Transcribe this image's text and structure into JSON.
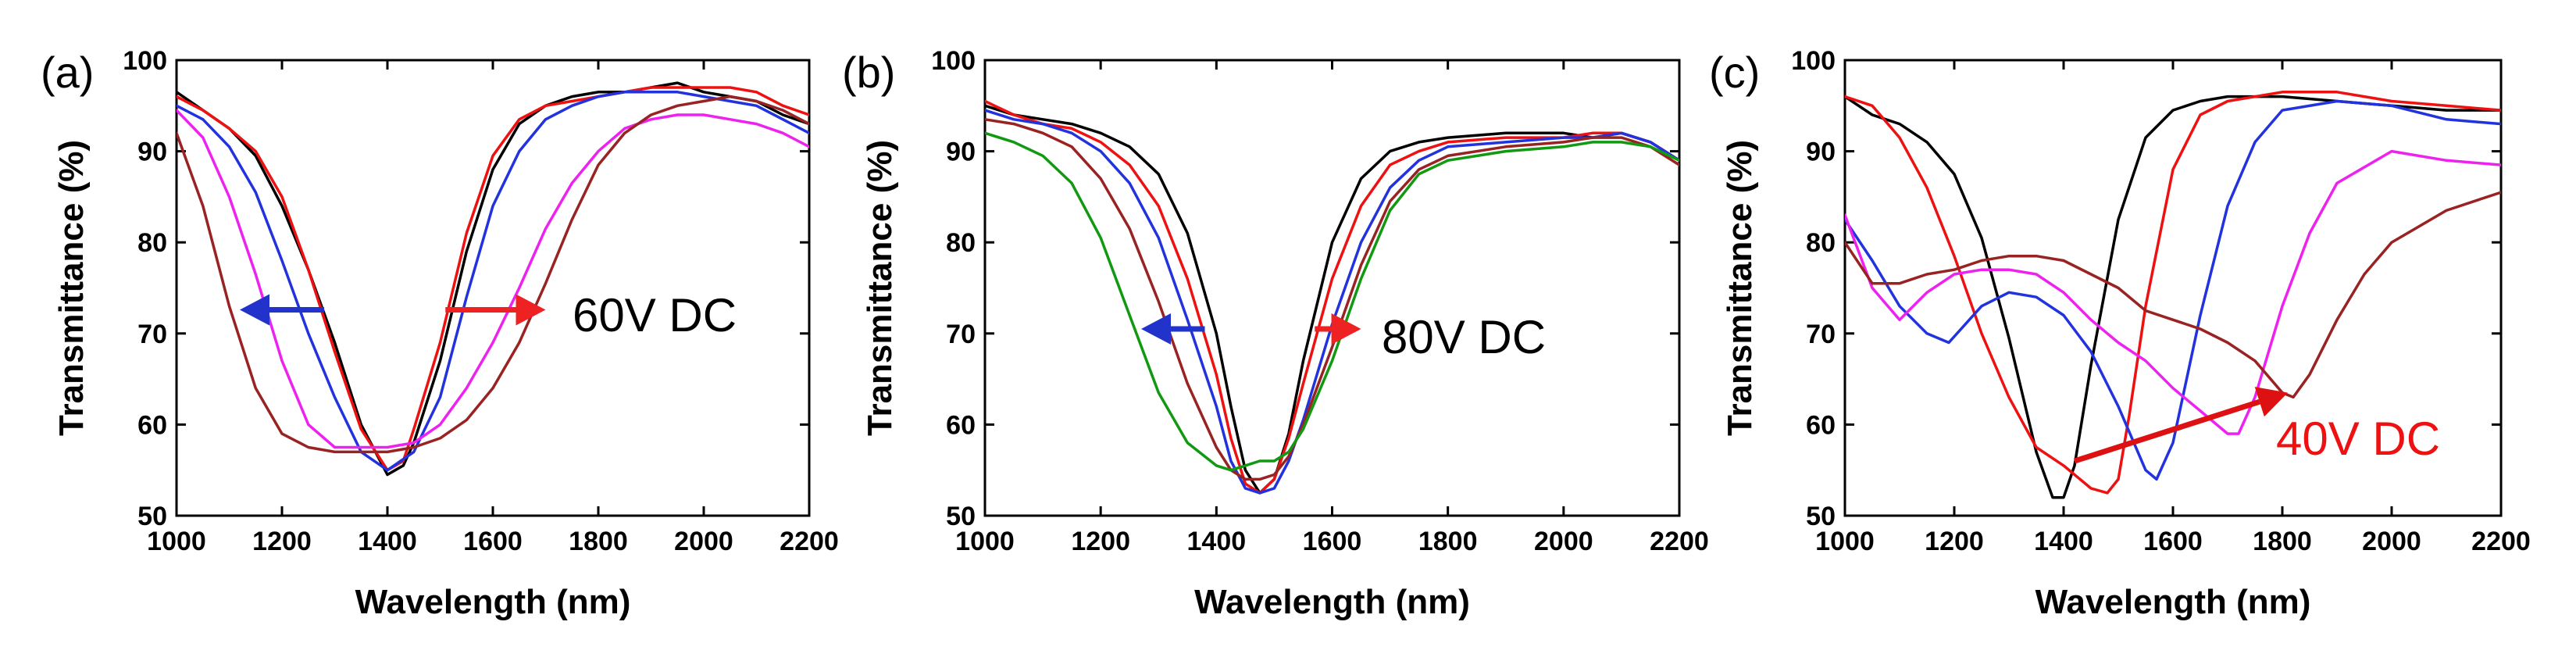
{
  "chart_data": [
    {
      "panel_label": "(a)",
      "type": "line",
      "xlabel": "Wavelength (nm)",
      "ylabel": "Transmittance (%)",
      "xlim": [
        1000,
        2200
      ],
      "ylim": [
        50,
        100
      ],
      "xticks": [
        1000,
        1200,
        1400,
        1600,
        1800,
        2000,
        2200
      ],
      "yticks": [
        50,
        60,
        70,
        80,
        90,
        100
      ],
      "annotation": "60V DC",
      "annotation_color": "#000000",
      "arrows": [
        {
          "from": [
            1280,
            72.6
          ],
          "to": [
            1120,
            72.6
          ],
          "color": "#2233cc"
        },
        {
          "from": [
            1510,
            72.6
          ],
          "to": [
            1700,
            72.6
          ],
          "color": "#ee2222"
        }
      ],
      "series": [
        {
          "name": "black",
          "color": "#000000",
          "x": [
            1000,
            1050,
            1100,
            1150,
            1200,
            1250,
            1300,
            1350,
            1400,
            1430,
            1450,
            1500,
            1550,
            1600,
            1650,
            1700,
            1750,
            1800,
            1850,
            1900,
            1950,
            2000,
            2050,
            2100,
            2150,
            2200
          ],
          "y": [
            96.5,
            94.5,
            92.5,
            89.5,
            84,
            77,
            69,
            60,
            54.5,
            55.5,
            58,
            67,
            79,
            88,
            93,
            95,
            96,
            96.5,
            96.5,
            97,
            97.5,
            96.5,
            96,
            95.5,
            94,
            93
          ]
        },
        {
          "name": "red",
          "color": "#ee1111",
          "x": [
            1000,
            1050,
            1100,
            1150,
            1200,
            1250,
            1300,
            1350,
            1400,
            1430,
            1450,
            1500,
            1550,
            1600,
            1650,
            1700,
            1750,
            1800,
            1850,
            1900,
            1950,
            2000,
            2050,
            2100,
            2150,
            2200
          ],
          "y": [
            96,
            94.5,
            92.5,
            90,
            85,
            77,
            68,
            59.5,
            55,
            56,
            59.5,
            69,
            81,
            89.5,
            93.5,
            95,
            95.5,
            96,
            96.5,
            97,
            97,
            97,
            97,
            96.5,
            95,
            94
          ]
        },
        {
          "name": "blue",
          "color": "#2233dd",
          "x": [
            1000,
            1050,
            1100,
            1150,
            1200,
            1250,
            1300,
            1350,
            1400,
            1450,
            1500,
            1550,
            1600,
            1650,
            1700,
            1750,
            1800,
            1850,
            1900,
            1950,
            2000,
            2050,
            2100,
            2150,
            2200
          ],
          "y": [
            95,
            93.5,
            90.5,
            85.5,
            78,
            70,
            63,
            57,
            55,
            57,
            63,
            74,
            84,
            90,
            93.5,
            95,
            96,
            96.5,
            96.5,
            96.5,
            96,
            95.5,
            95,
            93.5,
            92
          ]
        },
        {
          "name": "magenta",
          "color": "#ee22ee",
          "x": [
            1000,
            1050,
            1100,
            1150,
            1200,
            1250,
            1300,
            1350,
            1400,
            1450,
            1500,
            1550,
            1600,
            1650,
            1700,
            1750,
            1800,
            1850,
            1900,
            1950,
            2000,
            2050,
            2100,
            2150,
            2200
          ],
          "y": [
            94.5,
            91.5,
            85,
            76.5,
            67,
            60,
            57.5,
            57.5,
            57.5,
            58,
            60,
            64,
            69,
            75,
            81.5,
            86.5,
            90,
            92.5,
            93.5,
            94,
            94,
            93.5,
            93,
            92,
            90.5
          ]
        },
        {
          "name": "darkred",
          "color": "#992222",
          "x": [
            1000,
            1050,
            1100,
            1150,
            1200,
            1250,
            1300,
            1350,
            1400,
            1450,
            1500,
            1550,
            1600,
            1650,
            1700,
            1750,
            1800,
            1850,
            1900,
            1950,
            2000,
            2050,
            2100,
            2150,
            2200
          ],
          "y": [
            92,
            84,
            73,
            64,
            59,
            57.5,
            57,
            57,
            57,
            57.5,
            58.5,
            60.5,
            64,
            69,
            75.5,
            82.5,
            88.5,
            92,
            94,
            95,
            95.5,
            96,
            95.5,
            94.5,
            93
          ]
        }
      ]
    },
    {
      "panel_label": "(b)",
      "type": "line",
      "xlabel": "Wavelength (nm)",
      "ylabel": "Transmittance (%)",
      "xlim": [
        1000,
        2200
      ],
      "ylim": [
        50,
        100
      ],
      "xticks": [
        1000,
        1200,
        1400,
        1600,
        1800,
        2000,
        2200
      ],
      "yticks": [
        50,
        60,
        70,
        80,
        90,
        100
      ],
      "annotation": "80V DC",
      "annotation_color": "#000000",
      "arrows": [
        {
          "from": [
            1380,
            70.5
          ],
          "to": [
            1270,
            70.5
          ],
          "color": "#2233cc"
        },
        {
          "from": [
            1570,
            70.5
          ],
          "to": [
            1650,
            70.5
          ],
          "color": "#ee2222"
        }
      ],
      "series": [
        {
          "name": "black",
          "color": "#000000",
          "x": [
            1000,
            1050,
            1100,
            1150,
            1200,
            1250,
            1300,
            1350,
            1400,
            1425,
            1450,
            1475,
            1500,
            1525,
            1550,
            1600,
            1650,
            1700,
            1750,
            1800,
            1900,
            2000,
            2050,
            2100,
            2150,
            2200
          ],
          "y": [
            95,
            94,
            93.5,
            93,
            92,
            90.5,
            87.5,
            81,
            70,
            62,
            55,
            52.5,
            54,
            59,
            67,
            80,
            87,
            90,
            91,
            91.5,
            92,
            92,
            91.5,
            92,
            91,
            89
          ]
        },
        {
          "name": "red",
          "color": "#ee1111",
          "x": [
            1000,
            1050,
            1100,
            1150,
            1200,
            1250,
            1300,
            1350,
            1400,
            1425,
            1450,
            1475,
            1500,
            1525,
            1550,
            1600,
            1650,
            1700,
            1750,
            1800,
            1900,
            2000,
            2050,
            2100,
            2150,
            2200
          ],
          "y": [
            95.5,
            94,
            93,
            92.5,
            91,
            88.5,
            84,
            76,
            65.5,
            58.5,
            53.5,
            52.5,
            54,
            58.5,
            64.5,
            76,
            84,
            88.5,
            90,
            91,
            91.5,
            91.5,
            92,
            92,
            91,
            89
          ]
        },
        {
          "name": "blue",
          "color": "#2233dd",
          "x": [
            1000,
            1050,
            1100,
            1150,
            1200,
            1250,
            1300,
            1350,
            1400,
            1425,
            1450,
            1475,
            1500,
            1525,
            1550,
            1600,
            1650,
            1700,
            1750,
            1800,
            1900,
            2000,
            2050,
            2100,
            2150,
            2200
          ],
          "y": [
            94.5,
            93.5,
            93,
            92,
            90,
            86.5,
            80.5,
            71.5,
            62,
            56,
            53,
            52.5,
            53,
            56,
            60.5,
            71,
            80,
            86,
            89,
            90.5,
            91,
            91.5,
            91.5,
            92,
            91,
            89
          ]
        },
        {
          "name": "darkred",
          "color": "#992222",
          "x": [
            1000,
            1050,
            1100,
            1150,
            1200,
            1250,
            1300,
            1350,
            1400,
            1425,
            1450,
            1475,
            1500,
            1525,
            1550,
            1600,
            1650,
            1700,
            1750,
            1800,
            1900,
            2000,
            2050,
            2100,
            2150,
            2200
          ],
          "y": [
            93.5,
            93,
            92,
            90.5,
            87,
            81.5,
            73.5,
            64.5,
            57.5,
            55,
            54,
            54,
            54.5,
            56.5,
            60,
            68.5,
            77.5,
            84.5,
            88,
            89.5,
            90.5,
            91,
            91.5,
            91.5,
            90.5,
            88.5
          ]
        },
        {
          "name": "green",
          "color": "#119911",
          "x": [
            1000,
            1050,
            1100,
            1150,
            1200,
            1250,
            1300,
            1350,
            1400,
            1425,
            1450,
            1475,
            1500,
            1525,
            1550,
            1600,
            1650,
            1700,
            1750,
            1800,
            1900,
            2000,
            2050,
            2100,
            2150,
            2200
          ],
          "y": [
            92,
            91,
            89.5,
            86.5,
            80.5,
            72,
            63.5,
            58,
            55.5,
            55,
            55.5,
            56,
            56,
            57,
            59.5,
            67,
            76,
            83.5,
            87.5,
            89,
            90,
            90.5,
            91,
            91,
            90.5,
            89
          ]
        }
      ]
    },
    {
      "panel_label": "(c)",
      "type": "line",
      "xlabel": "Wavelength (nm)",
      "ylabel": "Transmittance (%)",
      "xlim": [
        1000,
        2200
      ],
      "ylim": [
        50,
        100
      ],
      "xticks": [
        1000,
        1200,
        1400,
        1600,
        1800,
        2000,
        2200
      ],
      "yticks": [
        50,
        60,
        70,
        80,
        90,
        100
      ],
      "annotation": "40V DC",
      "annotation_color": "#ee1111",
      "arrows": [
        {
          "from": [
            1420,
            56
          ],
          "to": [
            1810,
            63.5
          ],
          "color": "#dd1111"
        }
      ],
      "series": [
        {
          "name": "black",
          "color": "#000000",
          "x": [
            1000,
            1050,
            1100,
            1150,
            1200,
            1250,
            1300,
            1350,
            1380,
            1400,
            1420,
            1450,
            1500,
            1550,
            1600,
            1650,
            1700,
            1800,
            1900,
            2000,
            2100,
            2200
          ],
          "y": [
            96,
            94,
            93,
            91,
            87.5,
            80.5,
            69.5,
            57,
            52,
            52,
            55.5,
            66.5,
            82.5,
            91.5,
            94.5,
            95.5,
            96,
            96,
            95.5,
            95,
            94.5,
            94.5
          ]
        },
        {
          "name": "red",
          "color": "#ee1111",
          "x": [
            1000,
            1050,
            1100,
            1150,
            1200,
            1250,
            1300,
            1350,
            1400,
            1450,
            1480,
            1500,
            1520,
            1550,
            1600,
            1650,
            1700,
            1800,
            1900,
            2000,
            2100,
            2200
          ],
          "y": [
            96,
            95,
            91.5,
            86,
            78.5,
            70,
            63,
            57.5,
            55.5,
            53,
            52.5,
            54,
            61,
            73,
            88,
            94,
            95.5,
            96.5,
            96.5,
            95.5,
            95,
            94.5
          ]
        },
        {
          "name": "blue",
          "color": "#2233dd",
          "x": [
            1000,
            1050,
            1100,
            1150,
            1190,
            1250,
            1300,
            1350,
            1400,
            1450,
            1500,
            1550,
            1570,
            1600,
            1650,
            1700,
            1750,
            1800,
            1900,
            2000,
            2100,
            2200
          ],
          "y": [
            82.5,
            78,
            73,
            70,
            69,
            73,
            74.5,
            74,
            72,
            68,
            62,
            55,
            54,
            58,
            72,
            84,
            91,
            94.5,
            95.5,
            95,
            93.5,
            93
          ]
        },
        {
          "name": "magenta",
          "color": "#ee22ee",
          "x": [
            1000,
            1050,
            1100,
            1150,
            1200,
            1250,
            1300,
            1350,
            1400,
            1450,
            1500,
            1550,
            1600,
            1650,
            1700,
            1720,
            1750,
            1800,
            1850,
            1900,
            2000,
            2100,
            2200
          ],
          "y": [
            83,
            75,
            71.5,
            74.5,
            76.5,
            77,
            77,
            76.5,
            74.5,
            71.5,
            69,
            67,
            64,
            61.5,
            59,
            59,
            63,
            73,
            81,
            86.5,
            90,
            89,
            88.5
          ]
        },
        {
          "name": "darkred",
          "color": "#992222",
          "x": [
            1000,
            1050,
            1100,
            1150,
            1200,
            1250,
            1300,
            1350,
            1400,
            1450,
            1500,
            1550,
            1600,
            1650,
            1700,
            1750,
            1800,
            1820,
            1850,
            1900,
            1950,
            2000,
            2100,
            2200
          ],
          "y": [
            80,
            75.5,
            75.5,
            76.5,
            77,
            78,
            78.5,
            78.5,
            78,
            76.5,
            75,
            72.5,
            71.5,
            70.5,
            69,
            67,
            63.5,
            63,
            65.5,
            71.5,
            76.5,
            80,
            83.5,
            85.5
          ]
        }
      ]
    }
  ]
}
